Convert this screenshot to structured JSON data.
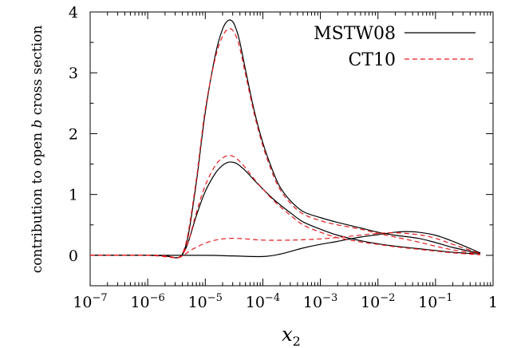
{
  "chart_data": {
    "type": "line",
    "xscale": "log",
    "xlabel": "x",
    "xlabel_sub": "2",
    "ylabel": "contribution to open ",
    "ylabel_var": "b",
    "ylabel_end": " cross section",
    "xlim": [
      1e-07,
      1
    ],
    "ylim": [
      -0.5,
      4
    ],
    "grid": false,
    "legend_position": "top-right",
    "x_ticks": [
      {
        "value": 1e-07,
        "base": "10",
        "exp": "−7"
      },
      {
        "value": 1e-06,
        "base": "10",
        "exp": "−6"
      },
      {
        "value": 1e-05,
        "base": "10",
        "exp": "−5"
      },
      {
        "value": 0.0001,
        "base": "10",
        "exp": "−4"
      },
      {
        "value": 0.001,
        "base": "10",
        "exp": "−3"
      },
      {
        "value": 0.01,
        "base": "10",
        "exp": "−2"
      },
      {
        "value": 0.1,
        "base": "10",
        "exp": "−1"
      },
      {
        "value": 1,
        "base": "1",
        "exp": ""
      }
    ],
    "y_ticks": [
      {
        "value": 0,
        "label": "0"
      },
      {
        "value": 1,
        "label": "1"
      },
      {
        "value": 2,
        "label": "2"
      },
      {
        "value": 3,
        "label": "3"
      },
      {
        "value": 4,
        "label": "4"
      }
    ],
    "series": [
      {
        "name": "MSTW08",
        "color": "#000000",
        "dash": "solid",
        "curves": [
          {
            "role": "total",
            "x": [
              1e-07,
              1e-06,
              2e-06,
              3e-06,
              3.5e-06,
              4e-06,
              5e-06,
              7e-06,
              1e-05,
              1.5e-05,
              2e-05,
              2.5e-05,
              3e-05,
              3.5e-05,
              4e-05,
              5e-05,
              7e-05,
              0.0001,
              0.00015,
              0.0002,
              0.0003,
              0.0005,
              0.001,
              0.002,
              0.005,
              0.01,
              0.02,
              0.05,
              0.1,
              0.2,
              0.6
            ],
            "y": [
              0,
              0,
              -0.01,
              -0.04,
              -0.03,
              0.02,
              0.3,
              1.2,
              2.35,
              3.3,
              3.72,
              3.86,
              3.84,
              3.7,
              3.5,
              3.05,
              2.4,
              1.85,
              1.38,
              1.12,
              0.9,
              0.72,
              0.62,
              0.54,
              0.45,
              0.38,
              0.33,
              0.28,
              0.21,
              0.13,
              0.03
            ]
          },
          {
            "role": "component-1",
            "x": [
              1e-07,
              1e-06,
              2e-06,
              3e-06,
              3.5e-06,
              4e-06,
              5e-06,
              7e-06,
              1e-05,
              1.5e-05,
              2e-05,
              2.5e-05,
              3e-05,
              3.5e-05,
              4e-05,
              5e-05,
              7e-05,
              0.0001,
              0.00015,
              0.0002,
              0.0003,
              0.0005,
              0.001,
              0.002,
              0.005,
              0.01,
              0.02,
              0.05,
              0.1,
              0.2,
              0.6
            ],
            "y": [
              0,
              0,
              -0.01,
              -0.04,
              -0.03,
              0.01,
              0.2,
              0.65,
              1.05,
              1.35,
              1.48,
              1.53,
              1.53,
              1.51,
              1.47,
              1.39,
              1.24,
              1.09,
              0.93,
              0.83,
              0.7,
              0.55,
              0.43,
              0.33,
              0.24,
              0.19,
              0.15,
              0.11,
              0.08,
              0.05,
              0.02
            ]
          },
          {
            "role": "component-2",
            "x": [
              1e-07,
              1e-06,
              1e-05,
              3e-05,
              0.0001,
              0.0002,
              0.0005,
              0.001,
              0.002,
              0.005,
              0.01,
              0.02,
              0.03,
              0.05,
              0.1,
              0.2,
              0.6
            ],
            "y": [
              0,
              0,
              0,
              -0.01,
              -0.02,
              0.02,
              0.12,
              0.18,
              0.23,
              0.3,
              0.34,
              0.38,
              0.39,
              0.38,
              0.33,
              0.23,
              0.04
            ]
          }
        ]
      },
      {
        "name": "CT10",
        "color": "#e41a1c",
        "dash": "dashed",
        "curves": [
          {
            "role": "total",
            "x": [
              1e-07,
              1e-06,
              2e-06,
              3e-06,
              3.5e-06,
              4e-06,
              5e-06,
              7e-06,
              1e-05,
              1.5e-05,
              2e-05,
              2.5e-05,
              3e-05,
              3.5e-05,
              4e-05,
              5e-05,
              7e-05,
              0.0001,
              0.00015,
              0.0002,
              0.0003,
              0.0005,
              0.001,
              0.002,
              0.005,
              0.01,
              0.02,
              0.05,
              0.1,
              0.2,
              0.6
            ],
            "y": [
              0,
              0,
              -0.01,
              -0.04,
              -0.03,
              0.02,
              0.35,
              1.25,
              2.4,
              3.25,
              3.6,
              3.72,
              3.7,
              3.58,
              3.4,
              2.98,
              2.35,
              1.8,
              1.33,
              1.08,
              0.86,
              0.68,
              0.57,
              0.5,
              0.43,
              0.36,
              0.3,
              0.22,
              0.15,
              0.09,
              0.02
            ]
          },
          {
            "role": "component-1",
            "x": [
              1e-07,
              1e-06,
              2e-06,
              3e-06,
              3.5e-06,
              4e-06,
              5e-06,
              7e-06,
              1e-05,
              1.5e-05,
              2e-05,
              2.5e-05,
              3e-05,
              3.5e-05,
              4e-05,
              5e-05,
              7e-05,
              0.0001,
              0.00015,
              0.0002,
              0.0003,
              0.0005,
              0.001,
              0.002,
              0.005,
              0.01,
              0.02,
              0.05,
              0.1,
              0.2,
              0.6
            ],
            "y": [
              0,
              0,
              -0.01,
              -0.04,
              -0.03,
              0.01,
              0.2,
              0.7,
              1.15,
              1.48,
              1.6,
              1.64,
              1.63,
              1.59,
              1.54,
              1.44,
              1.26,
              1.09,
              0.91,
              0.8,
              0.66,
              0.5,
              0.38,
              0.29,
              0.22,
              0.18,
              0.14,
              0.1,
              0.07,
              0.04,
              0.01
            ]
          },
          {
            "role": "component-2",
            "x": [
              1e-07,
              1e-06,
              3e-06,
              4e-06,
              6e-06,
              1e-05,
              1.5e-05,
              2e-05,
              3e-05,
              5e-05,
              0.0001,
              0.0003,
              0.001,
              0.003,
              0.01,
              0.02,
              0.05,
              0.1,
              0.2,
              0.6
            ],
            "y": [
              0,
              0,
              -0.04,
              -0.01,
              0.1,
              0.2,
              0.25,
              0.27,
              0.28,
              0.27,
              0.25,
              0.25,
              0.27,
              0.31,
              0.36,
              0.37,
              0.34,
              0.28,
              0.18,
              0.03
            ]
          }
        ]
      }
    ]
  }
}
